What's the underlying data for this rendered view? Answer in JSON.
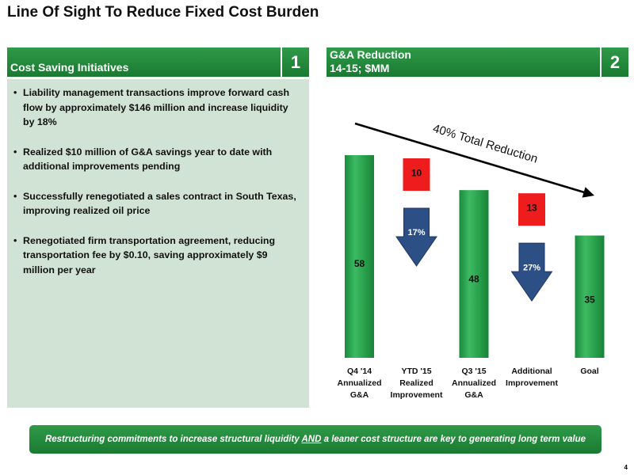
{
  "title": "Line Of Sight To Reduce Fixed Cost Burden",
  "panel1": {
    "title": "Cost Saving Initiatives",
    "number": "1",
    "bullets": [
      "Liability management transactions improve forward cash flow by approximately $146 million and increase liquidity by 18%",
      "Realized $10 million of G&A savings year to date with additional improvements pending",
      "Successfully renegotiated a sales contract in South Texas, improving realized oil price",
      "Renegotiated firm transportation agreement, reducing transportation fee by $0.10, saving approximately $9 million per year"
    ]
  },
  "panel2": {
    "title_line1": "G&A Reduction",
    "title_line2": "14-15; $MM",
    "number": "2"
  },
  "chart_data": {
    "type": "bar",
    "title": "",
    "categories": [
      [
        "Q4 '14",
        "Annualized",
        "G&A"
      ],
      [
        "YTD '15",
        "Realized",
        "Improvement"
      ],
      [
        "Q3 '15",
        "Annualized",
        "G&A"
      ],
      [
        "Additional",
        "Improvement"
      ],
      [
        "Goal"
      ]
    ],
    "bars": [
      {
        "category_index": 0,
        "kind": "total",
        "value": 58,
        "label": "58"
      },
      {
        "category_index": 1,
        "kind": "reduction",
        "value": 10,
        "label": "10",
        "pct_label": "17%"
      },
      {
        "category_index": 2,
        "kind": "total",
        "value": 48,
        "label": "48"
      },
      {
        "category_index": 3,
        "kind": "reduction",
        "value": 13,
        "label": "13",
        "pct_label": "27%"
      },
      {
        "category_index": 4,
        "kind": "total",
        "value": 35,
        "label": "35"
      }
    ],
    "trend_annotation": "40% Total Reduction",
    "ylim": [
      0,
      66
    ],
    "colors": {
      "total_bar": "#22a04b",
      "reduction_box": "#ee1c1c",
      "arrow_fill": "#2c4f86",
      "trend_line": "#000000"
    }
  },
  "footer": {
    "text_before": "Restructuring commitments to increase structural liquidity ",
    "text_emphasis": "AND",
    "text_after": " a leaner cost structure are key to generating long term value"
  },
  "page_number": "4"
}
